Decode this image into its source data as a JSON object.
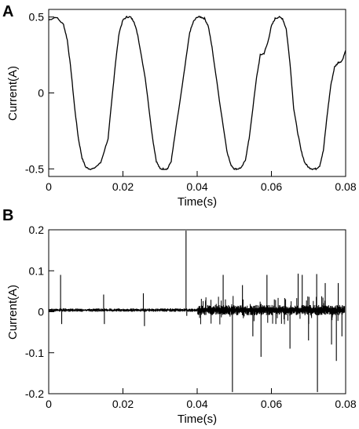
{
  "chart_data": [
    {
      "panel_label": "A",
      "type": "line",
      "xlabel": "Time(s)",
      "ylabel": "Current(A)",
      "xlim": [
        0,
        0.08
      ],
      "ylim": [
        -0.55,
        0.55
      ],
      "xticks": [
        0,
        0.02,
        0.04,
        0.06,
        0.08
      ],
      "xtick_labels": [
        "0",
        "0.02",
        "0.04",
        "0.06",
        "0.08"
      ],
      "yticks": [
        -0.5,
        0,
        0.5
      ],
      "ytick_labels": [
        "-0.5",
        "0",
        "0.5"
      ],
      "grid": false,
      "line_color": "#000000",
      "series": [
        {
          "x": [
            0,
            0.002,
            0.004,
            0.005,
            0.006,
            0.007,
            0.008,
            0.009,
            0.01,
            0.011,
            0.012,
            0.014,
            0.016,
            0.017,
            0.018,
            0.019,
            0.02,
            0.021,
            0.022,
            0.023,
            0.024,
            0.026,
            0.028,
            0.029,
            0.03,
            0.031,
            0.032,
            0.033,
            0.034,
            0.036,
            0.038,
            0.039,
            0.04,
            0.041,
            0.042,
            0.043,
            0.044,
            0.046,
            0.048,
            0.049,
            0.05,
            0.051,
            0.052,
            0.053,
            0.054,
            0.056,
            0.057,
            0.058,
            0.059,
            0.06,
            0.061,
            0.062,
            0.063,
            0.064,
            0.065,
            0.066,
            0.067,
            0.068,
            0.069,
            0.07,
            0.071,
            0.072,
            0.073,
            0.074,
            0.075,
            0.076,
            0.077,
            0.078,
            0.079,
            0.08
          ],
          "y": [
            0.48,
            0.5,
            0.45,
            0.35,
            0.15,
            -0.1,
            -0.3,
            -0.43,
            -0.49,
            -0.5,
            -0.5,
            -0.46,
            -0.3,
            -0.05,
            0.2,
            0.4,
            0.48,
            0.5,
            0.5,
            0.47,
            0.38,
            0.1,
            -0.3,
            -0.45,
            -0.5,
            -0.5,
            -0.5,
            -0.45,
            -0.28,
            0.05,
            0.4,
            0.47,
            0.5,
            0.5,
            0.49,
            0.44,
            0.3,
            -0.05,
            -0.38,
            -0.47,
            -0.5,
            -0.5,
            -0.49,
            -0.44,
            -0.3,
            0.1,
            0.25,
            0.26,
            0.33,
            0.44,
            0.49,
            0.5,
            0.49,
            0.42,
            0.2,
            -0.1,
            -0.25,
            -0.38,
            -0.46,
            -0.49,
            -0.5,
            -0.5,
            -0.48,
            -0.38,
            -0.15,
            0.05,
            0.17,
            0.2,
            0.21,
            0.28
          ]
        }
      ]
    },
    {
      "panel_label": "B",
      "type": "line",
      "xlabel": "Time(s)",
      "ylabel": "Current(A)",
      "xlim": [
        0,
        0.08
      ],
      "ylim": [
        -0.2,
        0.2
      ],
      "xticks": [
        0,
        0.02,
        0.04,
        0.06,
        0.08
      ],
      "xtick_labels": [
        "0",
        "0.02",
        "0.04",
        "0.06",
        "0.08"
      ],
      "yticks": [
        -0.2,
        -0.1,
        0,
        0.1,
        0.2
      ],
      "ytick_labels": [
        "-0.2",
        "-0.1",
        "0",
        "0.1",
        "0.2"
      ],
      "grid": false,
      "line_color": "#000000",
      "baseline": 0.004,
      "spikes": [
        {
          "x": 0.0032,
          "y": 0.09
        },
        {
          "x": 0.0035,
          "y": -0.03
        },
        {
          "x": 0.0148,
          "y": 0.042
        },
        {
          "x": 0.015,
          "y": -0.03
        },
        {
          "x": 0.0255,
          "y": 0.045
        },
        {
          "x": 0.0258,
          "y": -0.035
        },
        {
          "x": 0.037,
          "y": 0.198
        },
        {
          "x": 0.0372,
          "y": -0.01
        },
        {
          "x": 0.047,
          "y": 0.09
        },
        {
          "x": 0.0495,
          "y": -0.196
        },
        {
          "x": 0.0522,
          "y": 0.065
        },
        {
          "x": 0.055,
          "y": -0.06
        },
        {
          "x": 0.0572,
          "y": -0.11
        },
        {
          "x": 0.0588,
          "y": 0.09
        },
        {
          "x": 0.0612,
          "y": -0.03
        },
        {
          "x": 0.065,
          "y": -0.09
        },
        {
          "x": 0.0672,
          "y": 0.093
        },
        {
          "x": 0.0683,
          "y": 0.09
        },
        {
          "x": 0.07,
          "y": -0.07
        },
        {
          "x": 0.0722,
          "y": 0.092
        },
        {
          "x": 0.0724,
          "y": -0.196
        },
        {
          "x": 0.0745,
          "y": 0.07
        },
        {
          "x": 0.0762,
          "y": -0.08
        },
        {
          "x": 0.0775,
          "y": -0.12
        },
        {
          "x": 0.078,
          "y": 0.07
        },
        {
          "x": 0.079,
          "y": -0.06
        }
      ]
    }
  ]
}
